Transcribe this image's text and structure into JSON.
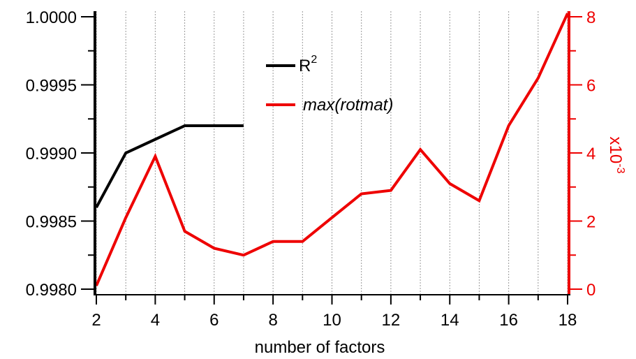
{
  "chart_data": {
    "type": "line",
    "xlabel": "number of factors",
    "xlim": [
      2,
      18
    ],
    "x_ticks": [
      "2",
      "4",
      "6",
      "8",
      "10",
      "12",
      "14",
      "16",
      "18"
    ],
    "x_minor_ticks": [
      3,
      5,
      7,
      9,
      11,
      13,
      15,
      17
    ],
    "vertical_grid": true,
    "y_left": {
      "ylim": [
        0.998,
        1.0
      ],
      "ticks": [
        "0.9980",
        "0.9985",
        "0.9990",
        "0.9995",
        "1.0000"
      ],
      "color": "#000000"
    },
    "y_right": {
      "ylim": [
        0,
        8
      ],
      "ticks": [
        "0",
        "2",
        "4",
        "6",
        "8"
      ],
      "multiplier": "x10",
      "multiplier_exp": "-3",
      "color": "#ee0000"
    },
    "legend": {
      "position": "top-center",
      "entries": [
        {
          "base": "R",
          "sup": "2",
          "color": "#000000"
        },
        {
          "base": "max(rotmat)",
          "sup": "",
          "color": "#ee0000",
          "italic": true
        }
      ]
    },
    "series": [
      {
        "name": "R²",
        "axis": "left",
        "color": "#000000",
        "x": [
          2,
          3,
          4,
          5,
          6,
          7
        ],
        "y": [
          0.9986,
          0.999,
          0.9991,
          0.9992,
          0.9992,
          0.9992
        ]
      },
      {
        "name": "max(rotmat)",
        "axis": "right",
        "color": "#ee0000",
        "x": [
          2,
          3,
          4,
          5,
          6,
          7,
          8,
          9,
          10,
          11,
          12,
          13,
          14,
          15,
          16,
          17,
          18
        ],
        "y": [
          0.1,
          2.1,
          3.9,
          1.7,
          1.2,
          1.0,
          1.4,
          1.4,
          2.1,
          2.8,
          2.9,
          4.1,
          3.1,
          2.6,
          4.8,
          6.2,
          8.1
        ]
      }
    ]
  }
}
